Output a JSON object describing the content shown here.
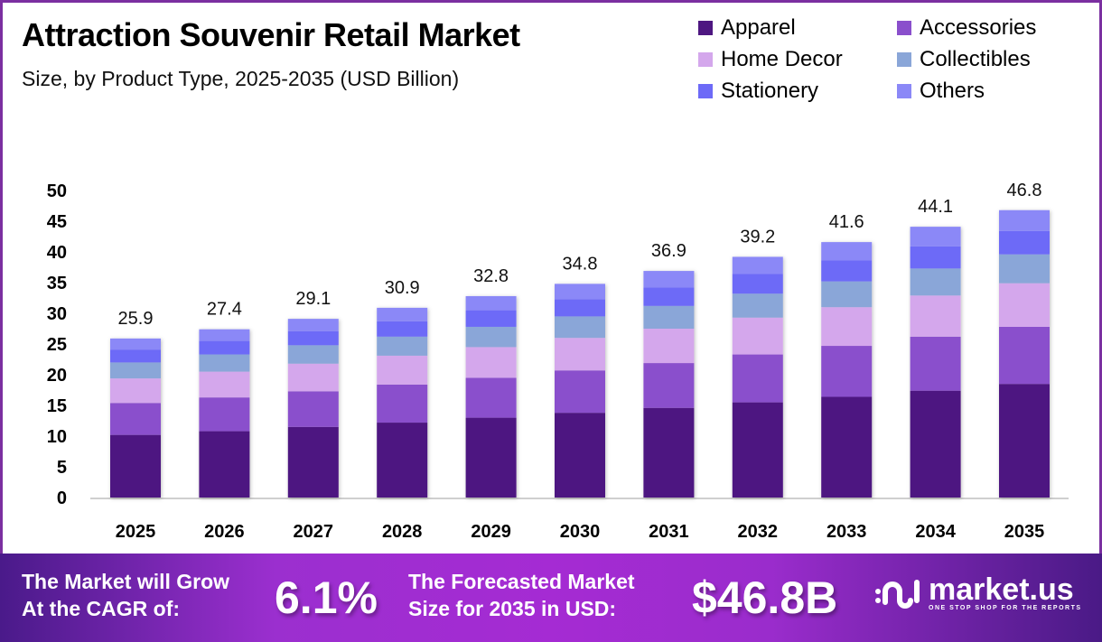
{
  "header": {
    "title": "Attraction Souvenir Retail Market",
    "subtitle": "Size, by Product Type, 2025-2035 (USD Billion)"
  },
  "chart_data": {
    "type": "bar",
    "stacked": true,
    "title": "Attraction Souvenir Retail Market",
    "subtitle": "Size, by Product Type, 2025-2035 (USD Billion)",
    "xlabel": "",
    "ylabel": "",
    "ylim": [
      0,
      50
    ],
    "yticks": [
      "0",
      "5",
      "10",
      "15",
      "20",
      "25",
      "30",
      "35",
      "40",
      "45",
      "50"
    ],
    "grid": false,
    "legend_position": "top-right",
    "categories": [
      "2025",
      "2026",
      "2027",
      "2028",
      "2029",
      "2030",
      "2031",
      "2032",
      "2033",
      "2034",
      "2035"
    ],
    "totals": [
      25.9,
      27.4,
      29.1,
      30.9,
      32.8,
      34.8,
      36.9,
      39.2,
      41.6,
      44.1,
      46.8
    ],
    "total_labels": [
      "25.9",
      "27.4",
      "29.1",
      "30.9",
      "32.8",
      "34.8",
      "36.9",
      "39.2",
      "41.6",
      "44.1",
      "46.8"
    ],
    "series": [
      {
        "name": "Apparel",
        "color": "#4e1781",
        "values": [
          10.2,
          10.8,
          11.5,
          12.2,
          13.0,
          13.8,
          14.6,
          15.5,
          16.4,
          17.4,
          18.5
        ]
      },
      {
        "name": "Accessories",
        "color": "#8a4fcc",
        "values": [
          5.2,
          5.5,
          5.8,
          6.2,
          6.5,
          6.9,
          7.3,
          7.8,
          8.3,
          8.8,
          9.3
        ]
      },
      {
        "name": "Home Decor",
        "color": "#d4a7ec",
        "values": [
          4.0,
          4.2,
          4.5,
          4.7,
          5.0,
          5.3,
          5.6,
          6.0,
          6.3,
          6.7,
          7.1
        ]
      },
      {
        "name": "Collectibles",
        "color": "#8aa6d8",
        "values": [
          2.6,
          2.8,
          3.0,
          3.1,
          3.3,
          3.5,
          3.7,
          3.9,
          4.2,
          4.4,
          4.7
        ]
      },
      {
        "name": "Stationery",
        "color": "#6d6af7",
        "values": [
          2.1,
          2.2,
          2.3,
          2.5,
          2.7,
          2.8,
          3.0,
          3.2,
          3.4,
          3.6,
          3.8
        ]
      },
      {
        "name": "Others",
        "color": "#8b88f7",
        "values": [
          1.8,
          1.9,
          2.0,
          2.2,
          2.3,
          2.5,
          2.7,
          2.8,
          3.0,
          3.2,
          3.4
        ]
      }
    ]
  },
  "footer": {
    "cagr_label_line1": "The Market will Grow",
    "cagr_label_line2": "At the CAGR of:",
    "cagr_value": "6.1%",
    "forecast_label_line1": "The Forecasted Market",
    "forecast_label_line2": "Size for 2035 in USD:",
    "forecast_value": "$46.8B",
    "brand_name": "market.us",
    "brand_tagline": "ONE STOP SHOP FOR THE REPORTS"
  }
}
